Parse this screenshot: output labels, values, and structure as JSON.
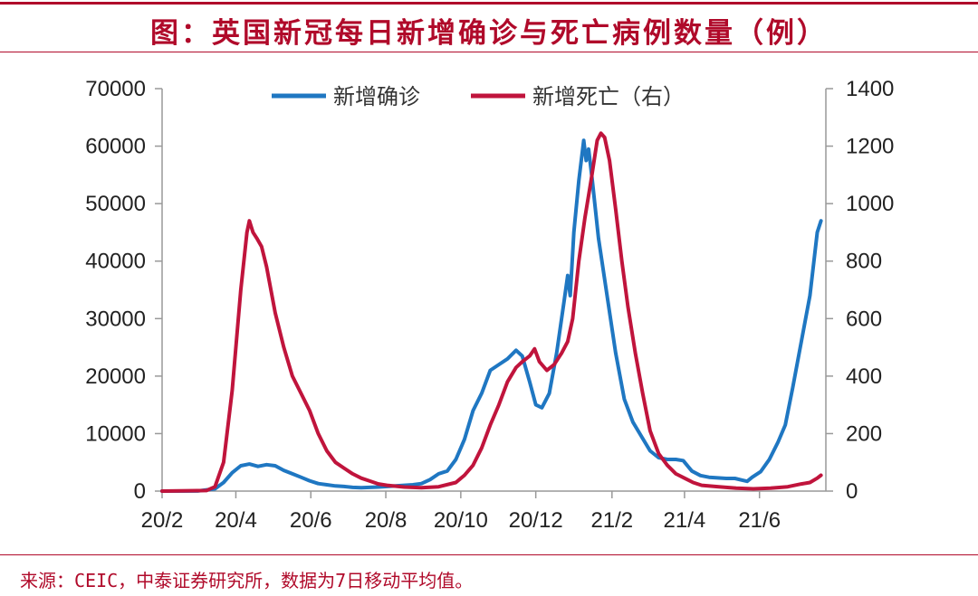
{
  "header": {
    "title": "图：英国新冠每日新增确诊与死亡病例数量（例）"
  },
  "footer": {
    "source": "来源：CEIC，中泰证券研究所，数据为7日移动平均值。"
  },
  "colors": {
    "accent": "#b00a2a",
    "cases": "#1f77c2",
    "deaths": "#c0143c",
    "axis": "#999999"
  },
  "chart_data": {
    "type": "line",
    "x_axis": {
      "type": "date",
      "range": [
        "2020-02-01",
        "2021-07-25"
      ],
      "ticks": [
        {
          "date": "2020-02-01",
          "label": "20/2"
        },
        {
          "date": "2020-04-01",
          "label": "20/4"
        },
        {
          "date": "2020-06-01",
          "label": "20/6"
        },
        {
          "date": "2020-08-01",
          "label": "20/8"
        },
        {
          "date": "2020-10-01",
          "label": "20/10"
        },
        {
          "date": "2020-12-01",
          "label": "20/12"
        },
        {
          "date": "2021-02-01",
          "label": "21/2"
        },
        {
          "date": "2021-04-01",
          "label": "21/4"
        },
        {
          "date": "2021-06-01",
          "label": "21/6"
        }
      ]
    },
    "y_left": {
      "min": 0,
      "max": 70000,
      "ticks": [
        0,
        10000,
        20000,
        30000,
        40000,
        50000,
        60000,
        70000
      ]
    },
    "y_right": {
      "min": 0,
      "max": 1400,
      "ticks": [
        0,
        200,
        400,
        600,
        800,
        1000,
        1200,
        1400
      ]
    },
    "legend": {
      "placement": "top"
    },
    "series": [
      {
        "name": "新增确诊",
        "axis": "left",
        "color": "#1f77c2",
        "points": [
          [
            "2020-02-01",
            0
          ],
          [
            "2020-03-01",
            20
          ],
          [
            "2020-03-15",
            400
          ],
          [
            "2020-03-22",
            1500
          ],
          [
            "2020-03-29",
            3200
          ],
          [
            "2020-04-05",
            4400
          ],
          [
            "2020-04-12",
            4700
          ],
          [
            "2020-04-19",
            4300
          ],
          [
            "2020-04-26",
            4600
          ],
          [
            "2020-05-03",
            4400
          ],
          [
            "2020-05-10",
            3600
          ],
          [
            "2020-05-17",
            3000
          ],
          [
            "2020-05-24",
            2400
          ],
          [
            "2020-05-31",
            1800
          ],
          [
            "2020-06-07",
            1300
          ],
          [
            "2020-06-14",
            1100
          ],
          [
            "2020-06-21",
            900
          ],
          [
            "2020-06-28",
            800
          ],
          [
            "2020-07-05",
            650
          ],
          [
            "2020-07-12",
            600
          ],
          [
            "2020-07-19",
            650
          ],
          [
            "2020-07-26",
            700
          ],
          [
            "2020-08-02",
            800
          ],
          [
            "2020-08-09",
            900
          ],
          [
            "2020-08-16",
            1000
          ],
          [
            "2020-08-23",
            1100
          ],
          [
            "2020-08-30",
            1300
          ],
          [
            "2020-09-06",
            2000
          ],
          [
            "2020-09-13",
            3000
          ],
          [
            "2020-09-20",
            3500
          ],
          [
            "2020-09-27",
            5500
          ],
          [
            "2020-10-04",
            9000
          ],
          [
            "2020-10-11",
            14000
          ],
          [
            "2020-10-18",
            17000
          ],
          [
            "2020-10-25",
            21000
          ],
          [
            "2020-11-01",
            22000
          ],
          [
            "2020-11-08",
            23000
          ],
          [
            "2020-11-15",
            24500
          ],
          [
            "2020-11-20",
            23500
          ],
          [
            "2020-11-26",
            19000
          ],
          [
            "2020-12-01",
            15000
          ],
          [
            "2020-12-06",
            14500
          ],
          [
            "2020-12-12",
            17000
          ],
          [
            "2020-12-18",
            24000
          ],
          [
            "2020-12-24",
            33000
          ],
          [
            "2020-12-27",
            37500
          ],
          [
            "2020-12-29",
            34000
          ],
          [
            "2021-01-01",
            45000
          ],
          [
            "2021-01-05",
            54000
          ],
          [
            "2021-01-09",
            61000
          ],
          [
            "2021-01-11",
            57500
          ],
          [
            "2021-01-13",
            59500
          ],
          [
            "2021-01-16",
            54000
          ],
          [
            "2021-01-21",
            44000
          ],
          [
            "2021-01-28",
            34000
          ],
          [
            "2021-02-04",
            24000
          ],
          [
            "2021-02-11",
            16000
          ],
          [
            "2021-02-18",
            12000
          ],
          [
            "2021-02-25",
            9500
          ],
          [
            "2021-03-04",
            7000
          ],
          [
            "2021-03-11",
            5800
          ],
          [
            "2021-03-18",
            5500
          ],
          [
            "2021-03-25",
            5500
          ],
          [
            "2021-03-31",
            5300
          ],
          [
            "2021-04-07",
            3500
          ],
          [
            "2021-04-14",
            2700
          ],
          [
            "2021-04-21",
            2400
          ],
          [
            "2021-04-28",
            2300
          ],
          [
            "2021-05-05",
            2200
          ],
          [
            "2021-05-12",
            2200
          ],
          [
            "2021-05-18",
            1900
          ],
          [
            "2021-05-22",
            1700
          ],
          [
            "2021-05-26",
            2400
          ],
          [
            "2021-06-02",
            3400
          ],
          [
            "2021-06-09",
            5500
          ],
          [
            "2021-06-16",
            8500
          ],
          [
            "2021-06-22",
            11500
          ],
          [
            "2021-06-28",
            18000
          ],
          [
            "2021-07-05",
            26000
          ],
          [
            "2021-07-12",
            34000
          ],
          [
            "2021-07-18",
            45000
          ],
          [
            "2021-07-21",
            47000
          ]
        ]
      },
      {
        "name": "新增死亡（右）",
        "axis": "right",
        "color": "#c0143c",
        "points": [
          [
            "2020-02-01",
            0
          ],
          [
            "2020-03-08",
            2
          ],
          [
            "2020-03-15",
            15
          ],
          [
            "2020-03-22",
            100
          ],
          [
            "2020-03-29",
            350
          ],
          [
            "2020-04-05",
            700
          ],
          [
            "2020-04-10",
            900
          ],
          [
            "2020-04-12",
            940
          ],
          [
            "2020-04-15",
            900
          ],
          [
            "2020-04-18",
            880
          ],
          [
            "2020-04-22",
            850
          ],
          [
            "2020-04-26",
            780
          ],
          [
            "2020-05-03",
            620
          ],
          [
            "2020-05-10",
            500
          ],
          [
            "2020-05-17",
            400
          ],
          [
            "2020-05-24",
            340
          ],
          [
            "2020-05-31",
            280
          ],
          [
            "2020-06-07",
            200
          ],
          [
            "2020-06-14",
            140
          ],
          [
            "2020-06-21",
            100
          ],
          [
            "2020-06-28",
            80
          ],
          [
            "2020-07-05",
            60
          ],
          [
            "2020-07-12",
            45
          ],
          [
            "2020-07-19",
            35
          ],
          [
            "2020-07-26",
            25
          ],
          [
            "2020-08-02",
            20
          ],
          [
            "2020-08-16",
            14
          ],
          [
            "2020-08-30",
            12
          ],
          [
            "2020-09-13",
            15
          ],
          [
            "2020-09-27",
            30
          ],
          [
            "2020-10-04",
            55
          ],
          [
            "2020-10-11",
            90
          ],
          [
            "2020-10-18",
            150
          ],
          [
            "2020-10-25",
            230
          ],
          [
            "2020-11-01",
            300
          ],
          [
            "2020-11-08",
            380
          ],
          [
            "2020-11-15",
            430
          ],
          [
            "2020-11-20",
            450
          ],
          [
            "2020-11-26",
            470
          ],
          [
            "2020-11-30",
            495
          ],
          [
            "2020-12-04",
            450
          ],
          [
            "2020-12-10",
            420
          ],
          [
            "2020-12-16",
            440
          ],
          [
            "2020-12-22",
            480
          ],
          [
            "2020-12-27",
            520
          ],
          [
            "2020-12-31",
            600
          ],
          [
            "2021-01-05",
            800
          ],
          [
            "2021-01-10",
            950
          ],
          [
            "2021-01-15",
            1080
          ],
          [
            "2021-01-20",
            1220
          ],
          [
            "2021-01-23",
            1245
          ],
          [
            "2021-01-26",
            1230
          ],
          [
            "2021-01-30",
            1150
          ],
          [
            "2021-02-04",
            980
          ],
          [
            "2021-02-09",
            800
          ],
          [
            "2021-02-14",
            640
          ],
          [
            "2021-02-20",
            480
          ],
          [
            "2021-02-26",
            340
          ],
          [
            "2021-03-04",
            210
          ],
          [
            "2021-03-11",
            130
          ],
          [
            "2021-03-18",
            90
          ],
          [
            "2021-03-25",
            60
          ],
          [
            "2021-04-01",
            45
          ],
          [
            "2021-04-08",
            30
          ],
          [
            "2021-04-15",
            20
          ],
          [
            "2021-04-29",
            15
          ],
          [
            "2021-05-13",
            10
          ],
          [
            "2021-05-27",
            8
          ],
          [
            "2021-06-10",
            10
          ],
          [
            "2021-06-24",
            15
          ],
          [
            "2021-07-05",
            25
          ],
          [
            "2021-07-12",
            30
          ],
          [
            "2021-07-18",
            45
          ],
          [
            "2021-07-21",
            55
          ]
        ]
      }
    ]
  }
}
